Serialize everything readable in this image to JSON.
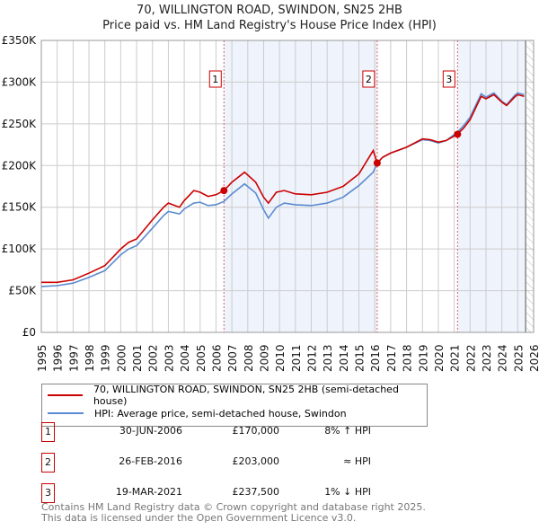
{
  "chart_data": {
    "type": "line",
    "title": "70, WILLINGTON ROAD, SWINDON, SN25 2HB",
    "subtitle": "Price paid vs. HM Land Registry's House Price Index (HPI)",
    "xlim": [
      1995,
      2026
    ],
    "ylim": [
      0,
      350000
    ],
    "y_ticks": [
      {
        "v": 0,
        "label": "£0"
      },
      {
        "v": 50000,
        "label": "£50K"
      },
      {
        "v": 100000,
        "label": "£100K"
      },
      {
        "v": 150000,
        "label": "£150K"
      },
      {
        "v": 200000,
        "label": "£200K"
      },
      {
        "v": 250000,
        "label": "£250K"
      },
      {
        "v": 300000,
        "label": "£300K"
      },
      {
        "v": 350000,
        "label": "£350K"
      }
    ],
    "x_ticks": [
      "1995",
      "1996",
      "1997",
      "1998",
      "1999",
      "2000",
      "2001",
      "2002",
      "2003",
      "2004",
      "2005",
      "2006",
      "2007",
      "2008",
      "2009",
      "2010",
      "2011",
      "2012",
      "2013",
      "2014",
      "2015",
      "2016",
      "2017",
      "2018",
      "2019",
      "2020",
      "2021",
      "2022",
      "2023",
      "2024",
      "2025",
      "2026"
    ],
    "grid": true,
    "series": [
      {
        "name": "70, WILLINGTON ROAD, SWINDON, SN25 2HB (semi-detached house)",
        "color": "#cc0000",
        "x": [
          1995,
          1996,
          1997,
          1998,
          1999,
          2000,
          2000.5,
          2001,
          2002,
          2002.7,
          2003,
          2003.7,
          2004,
          2004.6,
          2005,
          2005.5,
          2006,
          2006.5,
          2007,
          2007.8,
          2008.5,
          2009,
          2009.3,
          2009.8,
          2010.3,
          2011,
          2012,
          2013,
          2014,
          2015,
          2015.9,
          2016.15,
          2016.5,
          2017,
          2018,
          2019,
          2019.5,
          2020,
          2020.5,
          2021.2,
          2021.6,
          2022,
          2022.7,
          2023,
          2023.5,
          2024,
          2024.3,
          2024.8,
          2025,
          2025.4
        ],
        "y": [
          60000,
          60000,
          63000,
          71000,
          80000,
          100000,
          108000,
          112000,
          135000,
          150000,
          155000,
          150000,
          158000,
          170000,
          168000,
          163000,
          165000,
          170000,
          180000,
          192000,
          180000,
          162000,
          155000,
          168000,
          170000,
          166000,
          165000,
          168000,
          175000,
          190000,
          218000,
          203000,
          210000,
          215000,
          222000,
          232000,
          231000,
          228000,
          230000,
          237500,
          245000,
          255000,
          283000,
          280000,
          285000,
          276000,
          272000,
          282000,
          285000,
          283000
        ]
      },
      {
        "name": "HPI: Average price, semi-detached house, Swindon",
        "color": "#5b8bd0",
        "x": [
          1995,
          1996,
          1997,
          1998,
          1999,
          2000,
          2000.5,
          2001,
          2002,
          2002.7,
          2003,
          2003.7,
          2004,
          2004.6,
          2005,
          2005.5,
          2006,
          2006.5,
          2007,
          2007.8,
          2008.5,
          2009,
          2009.3,
          2009.8,
          2010.3,
          2011,
          2012,
          2013,
          2014,
          2015,
          2015.9,
          2016.15,
          2016.5,
          2017,
          2018,
          2019,
          2019.5,
          2020,
          2020.5,
          2021.2,
          2021.6,
          2022,
          2022.7,
          2023,
          2023.5,
          2024,
          2024.3,
          2024.8,
          2025,
          2025.4
        ],
        "y": [
          55000,
          56000,
          59000,
          66000,
          74000,
          93000,
          100000,
          104000,
          125000,
          140000,
          145000,
          142000,
          148000,
          155000,
          156000,
          152000,
          153000,
          157000,
          166000,
          178000,
          167000,
          147000,
          137000,
          150000,
          155000,
          153000,
          152000,
          155000,
          162000,
          176000,
          192000,
          203000,
          210000,
          215000,
          222000,
          231000,
          230000,
          227000,
          230000,
          240000,
          248000,
          258000,
          286000,
          282000,
          287000,
          277000,
          273000,
          284000,
          287000,
          285000
        ]
      }
    ],
    "sales": [
      {
        "num": "1",
        "x": 2006.5,
        "price": 170000,
        "date": "30-JUN-2006",
        "price_label": "£170,000",
        "hpi": "8% ↑ HPI"
      },
      {
        "num": "2",
        "x": 2016.15,
        "price": 203000,
        "date": "26-FEB-2016",
        "price_label": "£203,000",
        "hpi": "≈ HPI"
      },
      {
        "num": "3",
        "x": 2021.21,
        "price": 237500,
        "date": "19-MAR-2021",
        "price_label": "£237,500",
        "hpi": "1% ↓ HPI"
      }
    ],
    "shaded": [
      [
        2006.5,
        2016.15
      ],
      [
        2021.21,
        2025.5
      ]
    ],
    "forecast_start": 2025.5
  },
  "footer": [
    "Contains HM Land Registry data © Crown copyright and database right 2025.",
    "This data is licensed under the Open Government Licence v3.0."
  ]
}
